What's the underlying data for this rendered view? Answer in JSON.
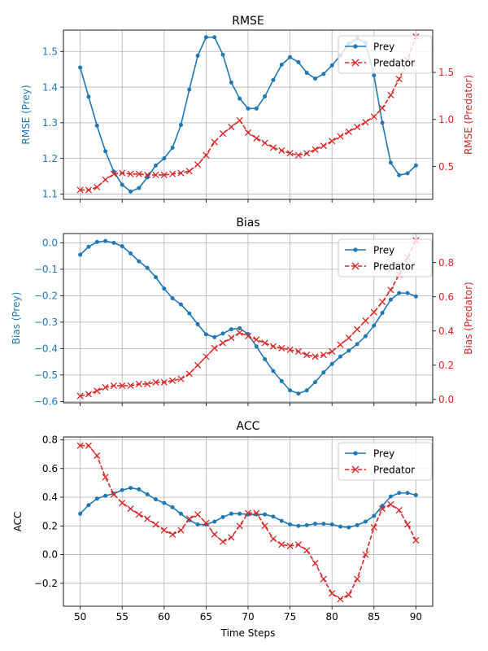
{
  "figure": {
    "xlabel": "Time Steps",
    "xticks": [
      50,
      55,
      60,
      65,
      70,
      75,
      80,
      85,
      90
    ],
    "colors": {
      "prey": "#1f77b4",
      "predator": "#d62728",
      "grid": "#b0b0b0",
      "axis": "#000000"
    }
  },
  "chart_data": [
    {
      "type": "line",
      "title": "RMSE",
      "xlim": [
        48,
        92
      ],
      "grid": true,
      "legend": "top-right",
      "left_axis": {
        "label": "RMSE (Prey)",
        "ylim": [
          1.085,
          1.56
        ],
        "ticks": [
          1.1,
          1.2,
          1.3,
          1.4,
          1.5
        ],
        "tick_labels": [
          "1.1",
          "1.2",
          "1.3",
          "1.4",
          "1.5"
        ]
      },
      "right_axis": {
        "label": "RMSE (Predator)",
        "ylim": [
          0.15,
          1.95
        ],
        "ticks": [
          0.5,
          1.0,
          1.5
        ],
        "tick_labels": [
          "0.5",
          "1.0",
          "1.5"
        ]
      },
      "x": [
        50,
        51,
        52,
        53,
        54,
        55,
        56,
        57,
        58,
        59,
        60,
        61,
        62,
        63,
        64,
        65,
        66,
        67,
        68,
        69,
        70,
        71,
        72,
        73,
        74,
        75,
        76,
        77,
        78,
        79,
        80,
        81,
        82,
        83,
        84,
        85,
        86,
        87,
        88,
        89,
        90
      ],
      "series": [
        {
          "name": "Prey",
          "axis": "left",
          "marker": "o",
          "linestyle": "solid",
          "values": [
            1.455,
            1.373,
            1.292,
            1.22,
            1.163,
            1.126,
            1.107,
            1.117,
            1.147,
            1.18,
            1.2,
            1.23,
            1.294,
            1.393,
            1.488,
            1.54,
            1.54,
            1.491,
            1.413,
            1.368,
            1.34,
            1.34,
            1.374,
            1.42,
            1.463,
            1.484,
            1.47,
            1.44,
            1.424,
            1.437,
            1.461,
            1.489,
            1.522,
            1.537,
            1.524,
            1.433,
            1.3,
            1.188,
            1.153,
            1.158,
            1.18
          ]
        },
        {
          "name": "Predator",
          "axis": "right",
          "marker": "x",
          "linestyle": "dashed",
          "values": [
            0.25,
            0.25,
            0.28,
            0.36,
            0.42,
            0.43,
            0.42,
            0.42,
            0.41,
            0.41,
            0.41,
            0.42,
            0.43,
            0.45,
            0.52,
            0.62,
            0.76,
            0.85,
            0.92,
            0.99,
            0.86,
            0.8,
            0.75,
            0.7,
            0.67,
            0.64,
            0.62,
            0.64,
            0.68,
            0.72,
            0.77,
            0.82,
            0.87,
            0.92,
            0.97,
            1.03,
            1.12,
            1.26,
            1.43,
            1.63,
            1.88
          ]
        }
      ]
    },
    {
      "type": "line",
      "title": "Bias",
      "xlim": [
        48,
        92
      ],
      "grid": true,
      "legend": "top-right",
      "left_axis": {
        "label": "Bias (Prey)",
        "ylim": [
          -0.605,
          0.035
        ],
        "ticks": [
          0.0,
          -0.1,
          -0.2,
          -0.3,
          -0.4,
          -0.5,
          -0.6
        ],
        "tick_labels": [
          "0.0",
          "−0.1",
          "−0.2",
          "−0.3",
          "−0.4",
          "−0.5",
          "−0.6"
        ]
      },
      "right_axis": {
        "label": "Bias (Predator)",
        "ylim": [
          -0.02,
          0.97
        ],
        "ticks": [
          0.0,
          0.2,
          0.4,
          0.6,
          0.8
        ],
        "tick_labels": [
          "0.0",
          "0.2",
          "0.4",
          "0.6",
          "0.8"
        ]
      },
      "x": [
        50,
        51,
        52,
        53,
        54,
        55,
        56,
        57,
        58,
        59,
        60,
        61,
        62,
        63,
        64,
        65,
        66,
        67,
        68,
        69,
        70,
        71,
        72,
        73,
        74,
        75,
        76,
        77,
        78,
        79,
        80,
        81,
        82,
        83,
        84,
        85,
        86,
        87,
        88,
        89,
        90
      ],
      "series": [
        {
          "name": "Prey",
          "axis": "left",
          "marker": "o",
          "linestyle": "solid",
          "values": [
            -0.045,
            -0.015,
            0.003,
            0.007,
            0.0,
            -0.013,
            -0.04,
            -0.07,
            -0.095,
            -0.13,
            -0.173,
            -0.21,
            -0.233,
            -0.267,
            -0.308,
            -0.346,
            -0.357,
            -0.343,
            -0.327,
            -0.323,
            -0.345,
            -0.392,
            -0.44,
            -0.485,
            -0.523,
            -0.558,
            -0.57,
            -0.558,
            -0.527,
            -0.49,
            -0.458,
            -0.43,
            -0.408,
            -0.383,
            -0.353,
            -0.313,
            -0.265,
            -0.215,
            -0.19,
            -0.19,
            -0.203
          ]
        },
        {
          "name": "Predator",
          "axis": "right",
          "marker": "x",
          "linestyle": "dashed",
          "values": [
            0.02,
            0.03,
            0.05,
            0.07,
            0.08,
            0.08,
            0.08,
            0.09,
            0.09,
            0.1,
            0.1,
            0.11,
            0.12,
            0.15,
            0.2,
            0.25,
            0.3,
            0.33,
            0.36,
            0.39,
            0.37,
            0.35,
            0.33,
            0.31,
            0.3,
            0.29,
            0.28,
            0.26,
            0.25,
            0.26,
            0.28,
            0.32,
            0.36,
            0.41,
            0.46,
            0.51,
            0.57,
            0.64,
            0.73,
            0.83,
            0.93
          ]
        }
      ]
    },
    {
      "type": "line",
      "title": "ACC",
      "xlim": [
        48,
        92
      ],
      "grid": true,
      "legend": "top-right",
      "left_axis": {
        "label": "ACC",
        "ylim": [
          -0.36,
          0.82
        ],
        "ticks": [
          0.8,
          0.6,
          0.4,
          0.2,
          0.0,
          -0.2
        ],
        "tick_labels": [
          "0.8",
          "0.6",
          "0.4",
          "0.2",
          "0.0",
          "−0.2"
        ]
      },
      "x": [
        50,
        51,
        52,
        53,
        54,
        55,
        56,
        57,
        58,
        59,
        60,
        61,
        62,
        63,
        64,
        65,
        66,
        67,
        68,
        69,
        70,
        71,
        72,
        73,
        74,
        75,
        76,
        77,
        78,
        79,
        80,
        81,
        82,
        83,
        84,
        85,
        86,
        87,
        88,
        89,
        90
      ],
      "series": [
        {
          "name": "Prey",
          "axis": "left",
          "marker": "o",
          "linestyle": "solid",
          "values": [
            0.285,
            0.345,
            0.39,
            0.41,
            0.425,
            0.45,
            0.465,
            0.455,
            0.42,
            0.385,
            0.36,
            0.33,
            0.285,
            0.24,
            0.21,
            0.21,
            0.23,
            0.262,
            0.285,
            0.285,
            0.28,
            0.28,
            0.28,
            0.265,
            0.235,
            0.21,
            0.2,
            0.205,
            0.215,
            0.215,
            0.21,
            0.195,
            0.19,
            0.205,
            0.23,
            0.27,
            0.34,
            0.405,
            0.43,
            0.43,
            0.415
          ]
        },
        {
          "name": "Predator",
          "axis": "left",
          "marker": "x",
          "linestyle": "dashed",
          "values": [
            0.76,
            0.76,
            0.69,
            0.54,
            0.42,
            0.36,
            0.32,
            0.28,
            0.25,
            0.21,
            0.17,
            0.14,
            0.17,
            0.25,
            0.28,
            0.22,
            0.14,
            0.09,
            0.12,
            0.2,
            0.29,
            0.29,
            0.2,
            0.11,
            0.07,
            0.06,
            0.07,
            0.03,
            -0.06,
            -0.17,
            -0.27,
            -0.31,
            -0.28,
            -0.17,
            0.0,
            0.19,
            0.32,
            0.35,
            0.31,
            0.21,
            0.1
          ]
        }
      ]
    }
  ]
}
